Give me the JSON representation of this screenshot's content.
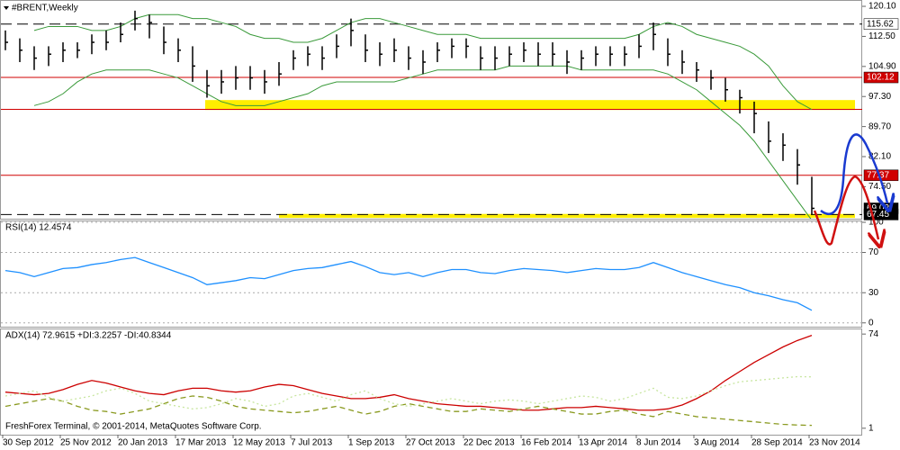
{
  "chart_data": [
    {
      "type": "range-bar",
      "title": "#BRENT,Weekly",
      "color": "#000000",
      "categories": [
        "30 Sep 2012",
        null,
        null,
        null,
        "25 Nov 2012",
        null,
        null,
        null,
        "20 Jan 2013",
        null,
        null,
        null,
        "17 Mar 2013",
        null,
        null,
        null,
        "12 May 2013",
        null,
        null,
        null,
        "7 Jul 2013",
        null,
        null,
        null,
        "1 Sep 2013",
        null,
        null,
        null,
        "27 Oct 2013",
        null,
        null,
        null,
        "22 Dec 2013",
        null,
        null,
        null,
        "16 Feb 2014",
        null,
        null,
        null,
        "13 Apr 2014",
        null,
        null,
        null,
        "8 Jun 2014",
        null,
        null,
        null,
        "3 Aug 2014",
        null,
        null,
        null,
        "28 Sep 2014",
        null,
        null,
        null,
        "23 Nov 2014"
      ],
      "values": [
        111,
        109,
        107,
        108,
        109,
        109,
        111,
        111,
        113,
        117,
        116,
        111,
        109,
        105,
        100,
        101,
        102,
        102,
        101,
        103,
        107,
        108,
        107,
        110,
        114,
        109,
        108,
        109,
        107,
        106,
        109,
        110,
        110,
        107,
        107,
        108,
        109,
        108,
        108,
        106,
        107,
        108,
        108,
        108,
        110,
        113,
        108,
        106,
        104,
        102,
        99,
        97,
        93,
        86,
        85,
        80,
        69.02
      ],
      "high": [
        114,
        112,
        110,
        110,
        111,
        111,
        113,
        114,
        116,
        119,
        118,
        115,
        112,
        110,
        104,
        104,
        105,
        105,
        104,
        106,
        109,
        110,
        110,
        113,
        117,
        113,
        111,
        112,
        110,
        109,
        111,
        112,
        112,
        110,
        110,
        110,
        111,
        111,
        111,
        109,
        109,
        110,
        110,
        110,
        113,
        116,
        112,
        109,
        106,
        104,
        102,
        99,
        96,
        91,
        88,
        84,
        77
      ],
      "low": [
        109,
        106,
        104,
        105,
        106,
        107,
        108,
        109,
        111,
        114,
        112,
        108,
        106,
        101,
        97,
        98,
        99,
        99,
        98,
        100,
        104,
        105,
        104,
        107,
        110,
        106,
        105,
        106,
        104,
        103,
        106,
        107,
        107,
        104,
        104,
        105,
        106,
        105,
        105,
        103,
        104,
        105,
        105,
        105,
        107,
        109,
        105,
        103,
        101,
        99,
        96,
        93,
        88,
        83,
        81,
        75,
        67.45
      ],
      "bands": {
        "color": "#3a9a3a",
        "upper": [
          null,
          null,
          114,
          115,
          115,
          115,
          114,
          114,
          115,
          117,
          118,
          118,
          118,
          117,
          117,
          116,
          115,
          113,
          112,
          112,
          111,
          111,
          112,
          114,
          116,
          117,
          117,
          116,
          115,
          114,
          113,
          113,
          113,
          112,
          112,
          112,
          112,
          112,
          112,
          112,
          112,
          112,
          112,
          112,
          113,
          115,
          116,
          115,
          113,
          112,
          111,
          110,
          108,
          105,
          100,
          96,
          94
        ],
        "lower": [
          null,
          null,
          95,
          96,
          98,
          101,
          103,
          104,
          104,
          104,
          104,
          103,
          102,
          100,
          98,
          96,
          95,
          95,
          95,
          96,
          97,
          98,
          100,
          101,
          101,
          101,
          101,
          101,
          102,
          103,
          104,
          104,
          104,
          104,
          104,
          105,
          105,
          105,
          105,
          105,
          104,
          104,
          104,
          104,
          104,
          104,
          103,
          101,
          99,
          96,
          93,
          90,
          86,
          81,
          76,
          71,
          66
        ]
      },
      "ylim": [
        66.4,
        121.7
      ],
      "yticks": [
        {
          "value": 120.1,
          "label": "120.10"
        },
        {
          "value": 112.5,
          "label": "112.50"
        },
        {
          "value": 104.9,
          "label": "104.90"
        },
        {
          "value": 97.3,
          "label": "97.30"
        },
        {
          "value": 89.7,
          "label": "89.70"
        },
        {
          "value": 82.1,
          "label": "82.10"
        },
        {
          "value": 74.5,
          "label": "74.50"
        }
      ],
      "levels": [
        {
          "value": 115.62,
          "color": "#000000",
          "style": "dashed",
          "label_bg": "#ffffff",
          "label_color": "#000000"
        },
        {
          "value": 102.12,
          "color": "#d00000",
          "style": "solid",
          "label_bg": "#d00000",
          "label_color": "#ffffff"
        },
        {
          "value": 77.37,
          "color": "#d00000",
          "style": "solid",
          "label_bg": "#d00000",
          "label_color": "#ffffff"
        },
        {
          "value": 69.02,
          "color": "#000000",
          "style": "none",
          "label_bg": "#000000",
          "label_color": "#ffffff"
        },
        {
          "value": 67.45,
          "color": "#000000",
          "style": "dashed",
          "label_bg": "#000000",
          "label_color": "#ffffff"
        }
      ],
      "lines": [
        {
          "value": 94.05,
          "color": "#d00000"
        }
      ],
      "zones": [
        {
          "from": 93.9,
          "to": 96.4,
          "color": "#ffee00"
        },
        {
          "from": 66.6,
          "to": 67.6,
          "color": "#ffee00"
        }
      ]
    },
    {
      "type": "line",
      "title": "RSI(14) 12.4574",
      "grid": true,
      "series": [
        {
          "color": "#1e90ff",
          "style": "solid",
          "values": [
            52,
            50,
            46,
            50,
            54,
            55,
            58,
            60,
            63,
            65,
            60,
            55,
            50,
            45,
            38,
            40,
            42,
            45,
            44,
            48,
            52,
            54,
            55,
            58,
            61,
            56,
            50,
            48,
            50,
            46,
            50,
            53,
            53,
            50,
            49,
            52,
            54,
            53,
            52,
            50,
            52,
            54,
            53,
            53,
            55,
            60,
            55,
            50,
            46,
            42,
            38,
            35,
            30,
            27,
            23,
            20,
            12.46
          ]
        }
      ],
      "ylim": [
        -3.8,
        101.8
      ],
      "yticks": [
        0,
        30,
        70,
        100
      ]
    },
    {
      "type": "line",
      "title": "ADX(14) 72.9615 +DI:3.2257 -DI:40.8344",
      "grid": false,
      "series": [
        {
          "color": "#cc0000",
          "style": "solid",
          "values": [
            29,
            28,
            27,
            28,
            31,
            35,
            38,
            36,
            33,
            30,
            28,
            27,
            30,
            32,
            32,
            30,
            29,
            30,
            33,
            35,
            34,
            31,
            28,
            26,
            24,
            24,
            25,
            27,
            24,
            22,
            20,
            19,
            18,
            18,
            17,
            16,
            15,
            15,
            16,
            17,
            17,
            18,
            17,
            16,
            15,
            15,
            16,
            19,
            24,
            30,
            38,
            45,
            52,
            58,
            64,
            69,
            72.96
          ]
        },
        {
          "color": "#8a9a20",
          "style": "dashed",
          "values": [
            18,
            20,
            22,
            24,
            22,
            18,
            15,
            14,
            12,
            14,
            16,
            20,
            24,
            26,
            25,
            22,
            18,
            16,
            15,
            14,
            13,
            14,
            16,
            18,
            15,
            12,
            14,
            18,
            20,
            18,
            16,
            14,
            14,
            16,
            15,
            14,
            16,
            18,
            16,
            14,
            12,
            12,
            14,
            15,
            12,
            10,
            14,
            12,
            10,
            9,
            8,
            7,
            6,
            5,
            4,
            3.5,
            3.23
          ]
        },
        {
          "color": "#c8e6a0",
          "style": "dotted",
          "values": [
            26,
            28,
            30,
            25,
            22,
            24,
            26,
            30,
            32,
            28,
            22,
            20,
            18,
            16,
            17,
            20,
            24,
            22,
            18,
            20,
            26,
            28,
            25,
            22,
            27,
            30,
            24,
            20,
            18,
            20,
            22,
            24,
            22,
            20,
            22,
            23,
            22,
            20,
            22,
            24,
            26,
            25,
            22,
            24,
            28,
            32,
            25,
            24,
            26,
            30,
            34,
            37,
            38,
            39,
            40,
            41,
            40.83
          ]
        }
      ],
      "ylim": [
        -4,
        78.3
      ],
      "yticks": [
        1,
        74
      ]
    }
  ],
  "footer": "FreshForex Terminal, © 2001-2014, MetaQuotes Software Corp."
}
